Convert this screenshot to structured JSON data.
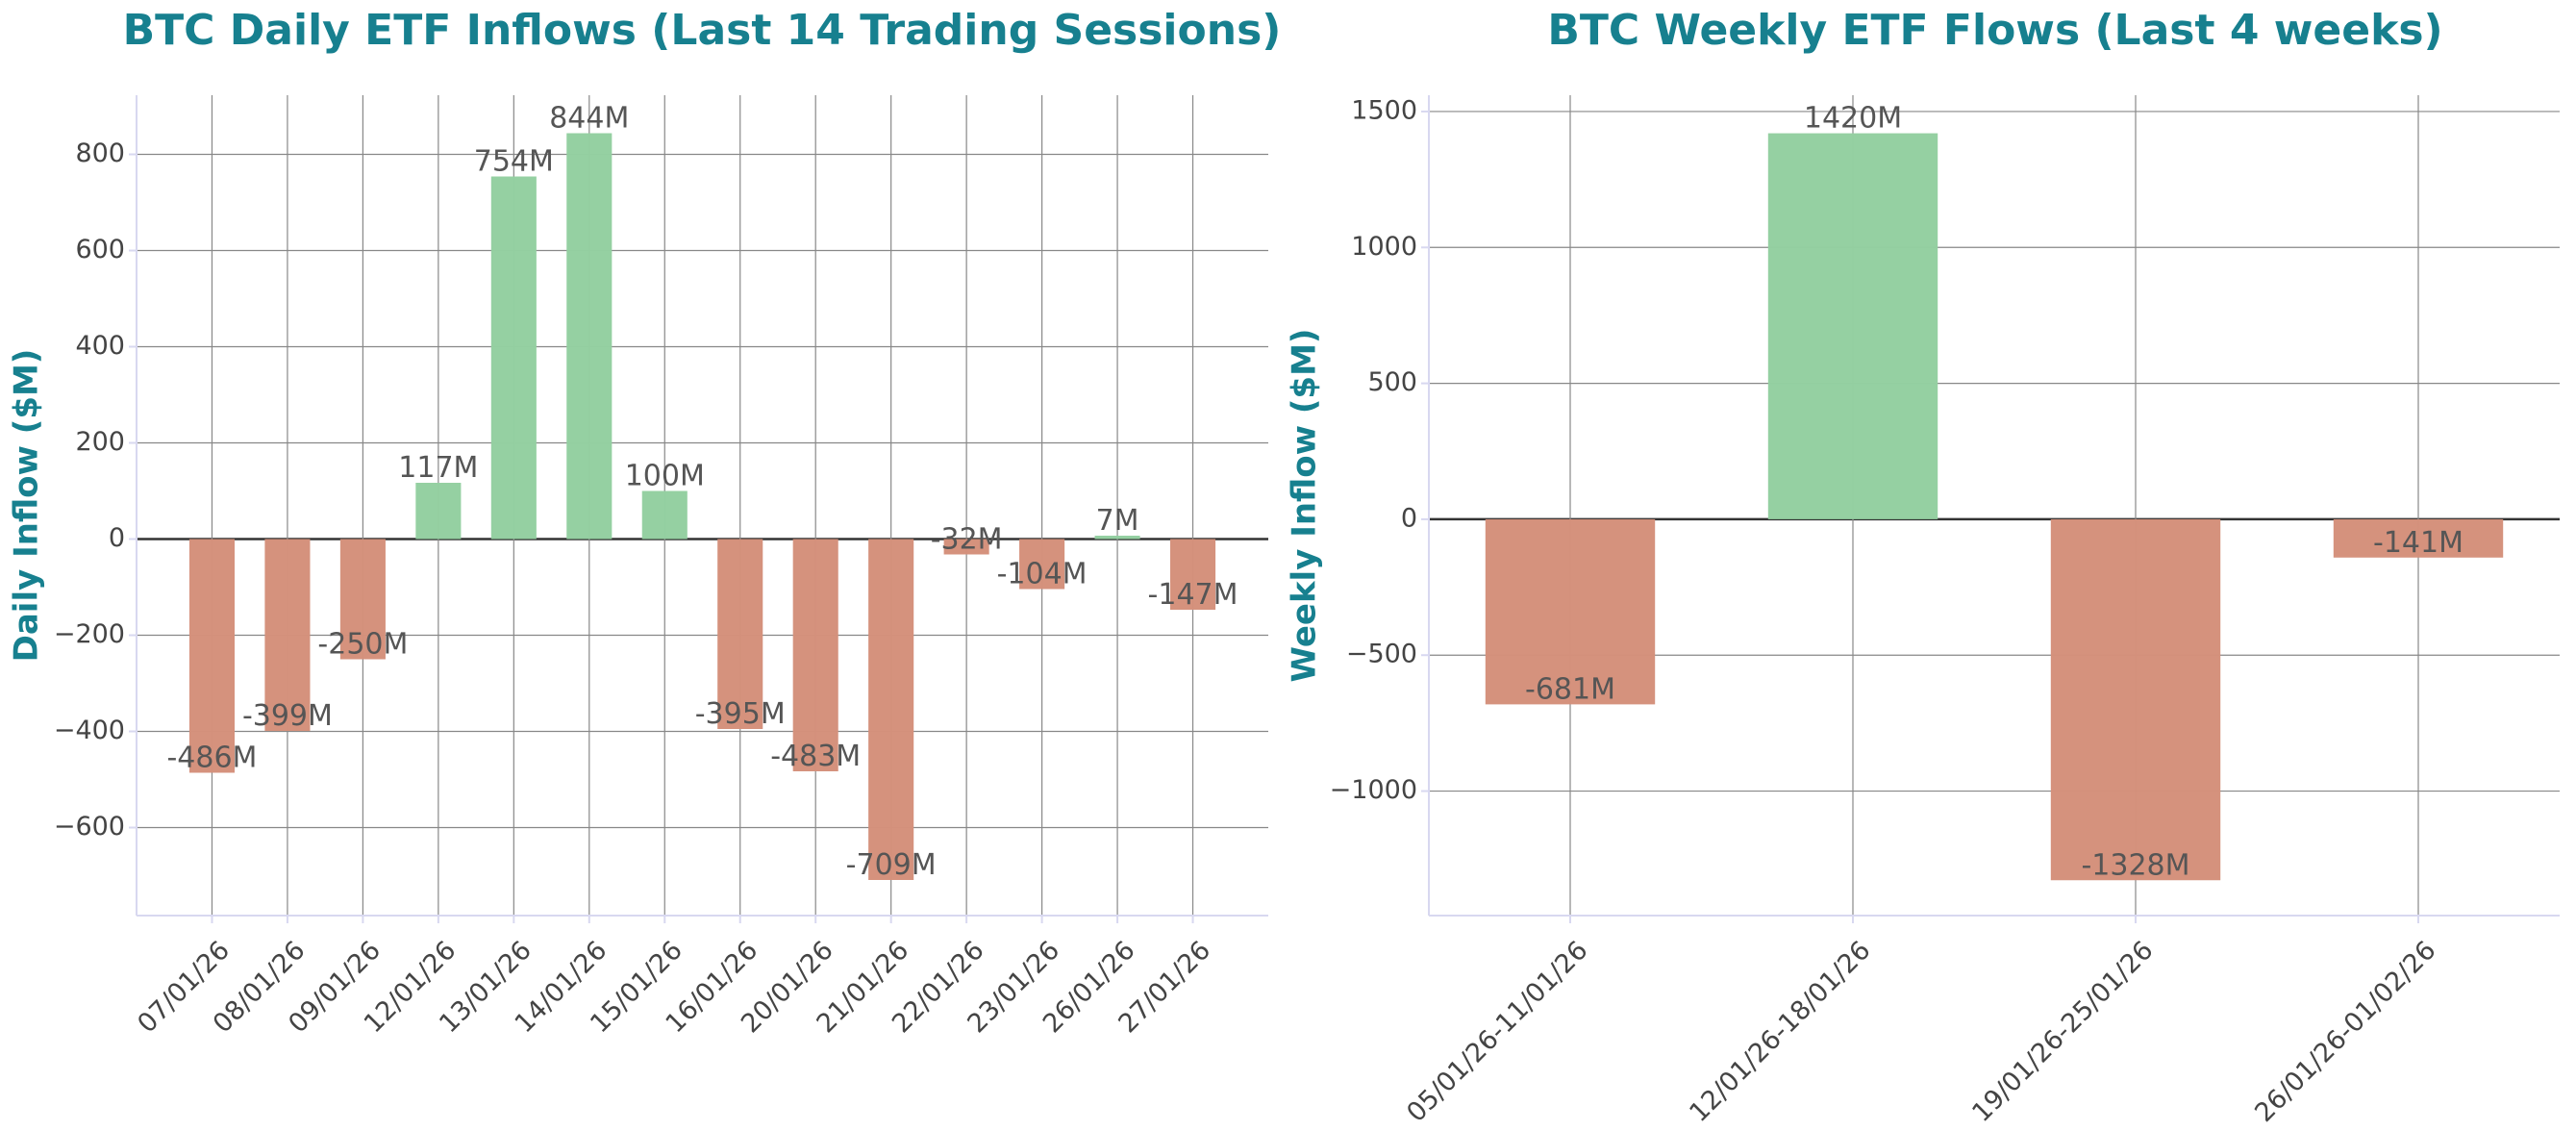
{
  "chart_data": [
    {
      "type": "bar",
      "title": "BTC Daily ETF Inflows (Last 14 Trading Sessions)",
      "y_label": "Daily Inflow ($M)",
      "categories": [
        "07/01/26",
        "08/01/26",
        "09/01/26",
        "12/01/26",
        "13/01/26",
        "14/01/26",
        "15/01/26",
        "16/01/26",
        "20/01/26",
        "21/01/26",
        "22/01/26",
        "23/01/26",
        "26/01/26",
        "27/01/26"
      ],
      "values": [
        -486,
        -399,
        -250,
        117,
        754,
        844,
        100,
        -395,
        -483,
        -709,
        -32,
        -104,
        7,
        -147
      ],
      "value_labels": [
        "-486M",
        "-399M",
        "-250M",
        "117M",
        "754M",
        "844M",
        "100M",
        "-395M",
        "-483M",
        "-709M",
        "-32M",
        "-104M",
        "7M",
        "-147M"
      ],
      "positive_color": "#93cfa0",
      "negative_color": "#d4907a",
      "ylim": [
        -783,
        923
      ],
      "yticks": [
        {
          "value": -600,
          "label": "−600"
        },
        {
          "value": -400,
          "label": "−400"
        },
        {
          "value": -200,
          "label": "−200"
        },
        0,
        200,
        400,
        600,
        800
      ],
      "grid": true
    },
    {
      "type": "bar",
      "title": "BTC Weekly ETF Flows (Last 4 weeks)",
      "y_label": "Weekly Inflow ($M)",
      "categories": [
        "05/01/26-11/01/26",
        "12/01/26-18/01/26",
        "19/01/26-25/01/26",
        "26/01/26-01/02/26"
      ],
      "values": [
        -681,
        1420,
        -1328,
        -141
      ],
      "value_labels": [
        "-681M",
        "1420M",
        "-1328M",
        "-141M"
      ],
      "positive_color": "#93cfa0",
      "negative_color": "#d4907a",
      "ylim": [
        -1458,
        1560
      ],
      "yticks": [
        {
          "value": -1000,
          "label": "−1000"
        },
        {
          "value": -500,
          "label": "−500"
        },
        0,
        500,
        1000,
        1500
      ],
      "grid": true
    }
  ]
}
